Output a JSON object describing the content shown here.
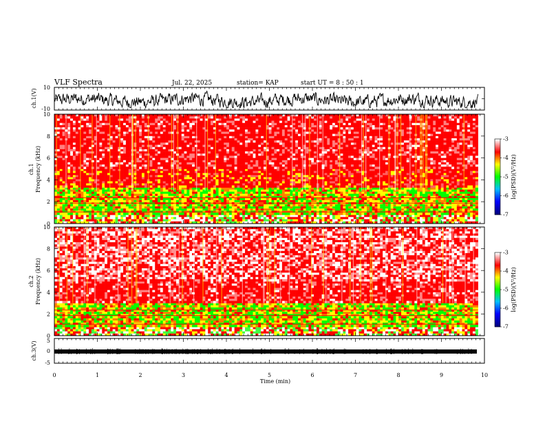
{
  "header": {
    "title": "VLF Spectra",
    "date": "Jul. 22, 2025",
    "station": "station= KAP",
    "start": "start UT =  8 : 50 : 1"
  },
  "colors": {
    "cmap": [
      "#000080",
      "#0000ff",
      "#00c0ff",
      "#00ff00",
      "#ffff00",
      "#ff0000",
      "#ffffff"
    ],
    "trace": "#000000"
  },
  "chart_data": [
    {
      "type": "line",
      "panel": "ch1-waveform",
      "ylabel": "ch.1(V)",
      "ylim": [
        -10,
        10
      ],
      "yticks": [
        "10",
        "-10"
      ],
      "xlim": [
        0,
        9.85
      ],
      "description_values": "noisy waveform, amplitude mostly -7 to 6 V"
    },
    {
      "type": "heatmap",
      "panel": "ch1-spectrogram",
      "ylabel": "ch.1\nFrequency (kHz)",
      "ylim": [
        0,
        10
      ],
      "yticks": [
        "0",
        "2",
        "4",
        "6",
        "8",
        "10"
      ],
      "xlim": [
        0,
        9.85
      ],
      "bands_khz": [
        {
          "from": 0.0,
          "to": 0.8,
          "level": "mixed"
        },
        {
          "from": 0.8,
          "to": 3.3,
          "level": "yellow-green"
        },
        {
          "from": 3.3,
          "to": 5.0,
          "level": "red-yellow"
        },
        {
          "from": 5.0,
          "to": 10.0,
          "level": "red"
        }
      ],
      "colorbar": {
        "label": "log(PSD)(V²/Hz)",
        "range": [
          -7,
          -3
        ],
        "ticks": [
          "-3",
          "-4",
          "-5",
          "-6",
          "-7"
        ]
      }
    },
    {
      "type": "heatmap",
      "panel": "ch2-spectrogram",
      "ylabel": "ch.2\nFrequency (kHz)",
      "ylim": [
        0,
        10
      ],
      "yticks": [
        "0",
        "2",
        "4",
        "6",
        "8",
        "10"
      ],
      "xlim": [
        0,
        9.85
      ],
      "bands_khz": [
        {
          "from": 0.0,
          "to": 0.8,
          "level": "mixed"
        },
        {
          "from": 0.8,
          "to": 3.0,
          "level": "yellow-green"
        },
        {
          "from": 3.0,
          "to": 5.0,
          "level": "red"
        },
        {
          "from": 5.0,
          "to": 10.0,
          "level": "red-white"
        }
      ],
      "colorbar": {
        "label": "log(PSD)(V²/Hz)",
        "range": [
          -7,
          -3
        ],
        "ticks": [
          "-3",
          "-4",
          "-5",
          "-6",
          "-7"
        ]
      }
    },
    {
      "type": "line",
      "panel": "ch3-waveform",
      "ylabel": "ch.3(V)",
      "ylim": [
        -5,
        5
      ],
      "yticks": [
        "5",
        "0",
        "-5"
      ],
      "xlim": [
        0,
        9.85
      ],
      "description_values": "flat band near -1.5 V"
    }
  ],
  "xaxis": {
    "label": "Time (min)",
    "range": [
      0,
      10
    ],
    "ticks": [
      "0",
      "1",
      "2",
      "3",
      "4",
      "5",
      "6",
      "7",
      "8",
      "9",
      "10"
    ]
  }
}
